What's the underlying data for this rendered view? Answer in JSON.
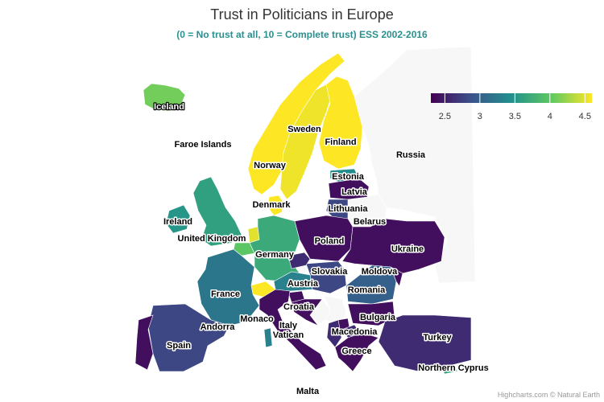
{
  "title": "Trust in Politicians in Europe",
  "subtitle": "(0 = No trust at all, 10 = Complete trust) ESS 2002-2016",
  "credits": "Highcharts.com © Natural Earth",
  "legend": {
    "min": 2.3,
    "max": 4.6,
    "ticks": [
      "2.5",
      "3",
      "3.5",
      "4",
      "4.5"
    ],
    "colors": [
      "#440154",
      "#3b528b",
      "#21918c",
      "#5ec962",
      "#fde725"
    ]
  },
  "colors": {
    "no_data": "#f7f7f7",
    "title": "#333333",
    "subtitle": "#2a8f8f"
  },
  "labels": {
    "iceland": "Iceland",
    "faroe": "Faroe Islands",
    "norway": "Norway",
    "sweden": "Sweden",
    "finland": "Finland",
    "russia": "Russia",
    "estonia": "Estonia",
    "latvia": "Latvia",
    "lithuania": "Lithuania",
    "belarus": "Belarus",
    "denmark": "Denmark",
    "ireland": "Ireland",
    "uk": "United Kingdom",
    "poland": "Poland",
    "ukraine": "Ukraine",
    "germany": "Germany",
    "slovakia": "Slovakia",
    "moldova": "Moldova",
    "austria": "Austria",
    "france": "France",
    "romania": "Romania",
    "croatia": "Croatia",
    "bulgaria": "Bulgaria",
    "monaco": "Monaco",
    "andorra": "Andorra",
    "italy": "Italy",
    "vatican": "Vatican",
    "macedonia": "Macedonia",
    "turkey": "Turkey",
    "spain": "Spain",
    "greece": "Greece",
    "n_cyprus": "Northern Cyprus",
    "malta": "Malta"
  },
  "values": {
    "iceland": 4.1,
    "norway": 4.6,
    "sweden": 4.55,
    "finland": 4.6,
    "denmark": 4.6,
    "estonia": 3.4,
    "latvia": 2.4,
    "lithuania": 2.8,
    "ireland": 3.5,
    "uk": 3.6,
    "netherlands": 4.5,
    "belgium": 4.0,
    "germany": 3.7,
    "poland": 2.4,
    "ukraine": 2.4,
    "czech": 2.6,
    "slovakia": 2.8,
    "hungary": 2.8,
    "austria": 3.3,
    "switzerland": 4.6,
    "france": 3.2,
    "spain": 2.8,
    "portugal": 2.4,
    "italy": 2.4,
    "slovenia": 2.4,
    "croatia": 2.4,
    "romania": 3.0,
    "bulgaria": 2.4,
    "greece": 2.4,
    "turkey": 2.6,
    "kosovo": 2.4,
    "macedonia": 2.6,
    "albania": 2.6,
    "moldova": 2.4,
    "sardinia": 3.3,
    "n_cyprus": 3.6
  }
}
